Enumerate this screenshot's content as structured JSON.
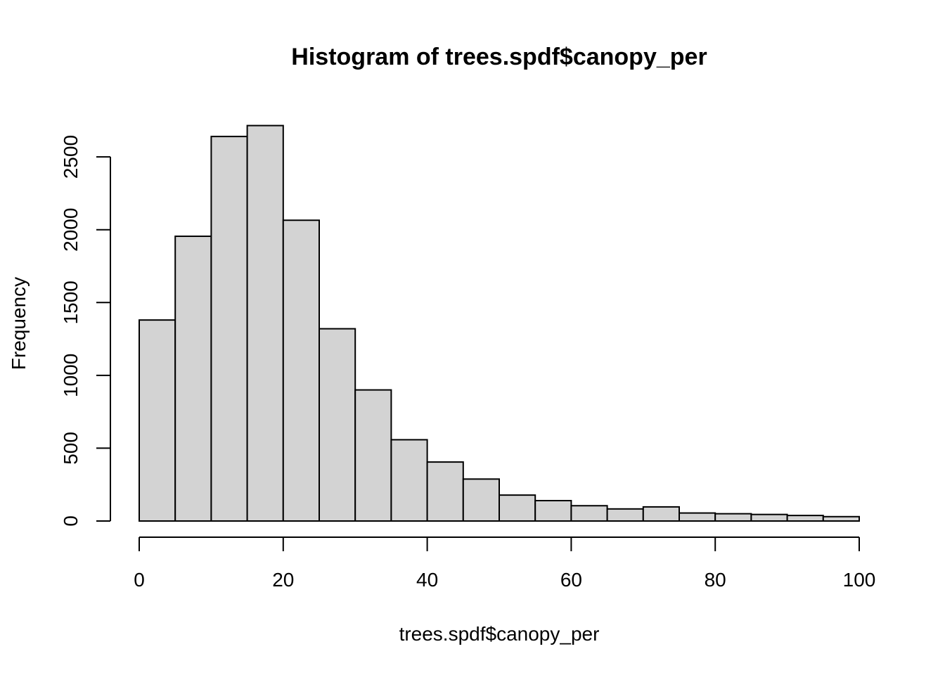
{
  "chart_data": {
    "type": "bar",
    "title": "Histogram of trees.spdf$canopy_per",
    "xlabel": "trees.spdf$canopy_per",
    "ylabel": "Frequency",
    "bin_edges": [
      0,
      5,
      10,
      15,
      20,
      25,
      30,
      35,
      40,
      45,
      50,
      55,
      60,
      65,
      70,
      75,
      80,
      85,
      90,
      95,
      100
    ],
    "values": [
      1380,
      1955,
      2640,
      2715,
      2065,
      1320,
      900,
      558,
      405,
      288,
      178,
      140,
      105,
      83,
      97,
      55,
      50,
      45,
      38,
      30
    ],
    "xlim": [
      0,
      100
    ],
    "ylim": [
      0,
      2715
    ],
    "x_ticks": [
      0,
      20,
      40,
      60,
      80,
      100
    ],
    "x_tick_labels": [
      "0",
      "20",
      "40",
      "60",
      "80",
      "100"
    ],
    "y_ticks": [
      0,
      500,
      1000,
      1500,
      2000,
      2500
    ],
    "y_tick_labels": [
      "0",
      "500",
      "1000",
      "1500",
      "2000",
      "2500"
    ],
    "grid": false,
    "colors": {
      "bar_fill": "#d3d3d3",
      "bar_stroke": "#000000"
    }
  }
}
